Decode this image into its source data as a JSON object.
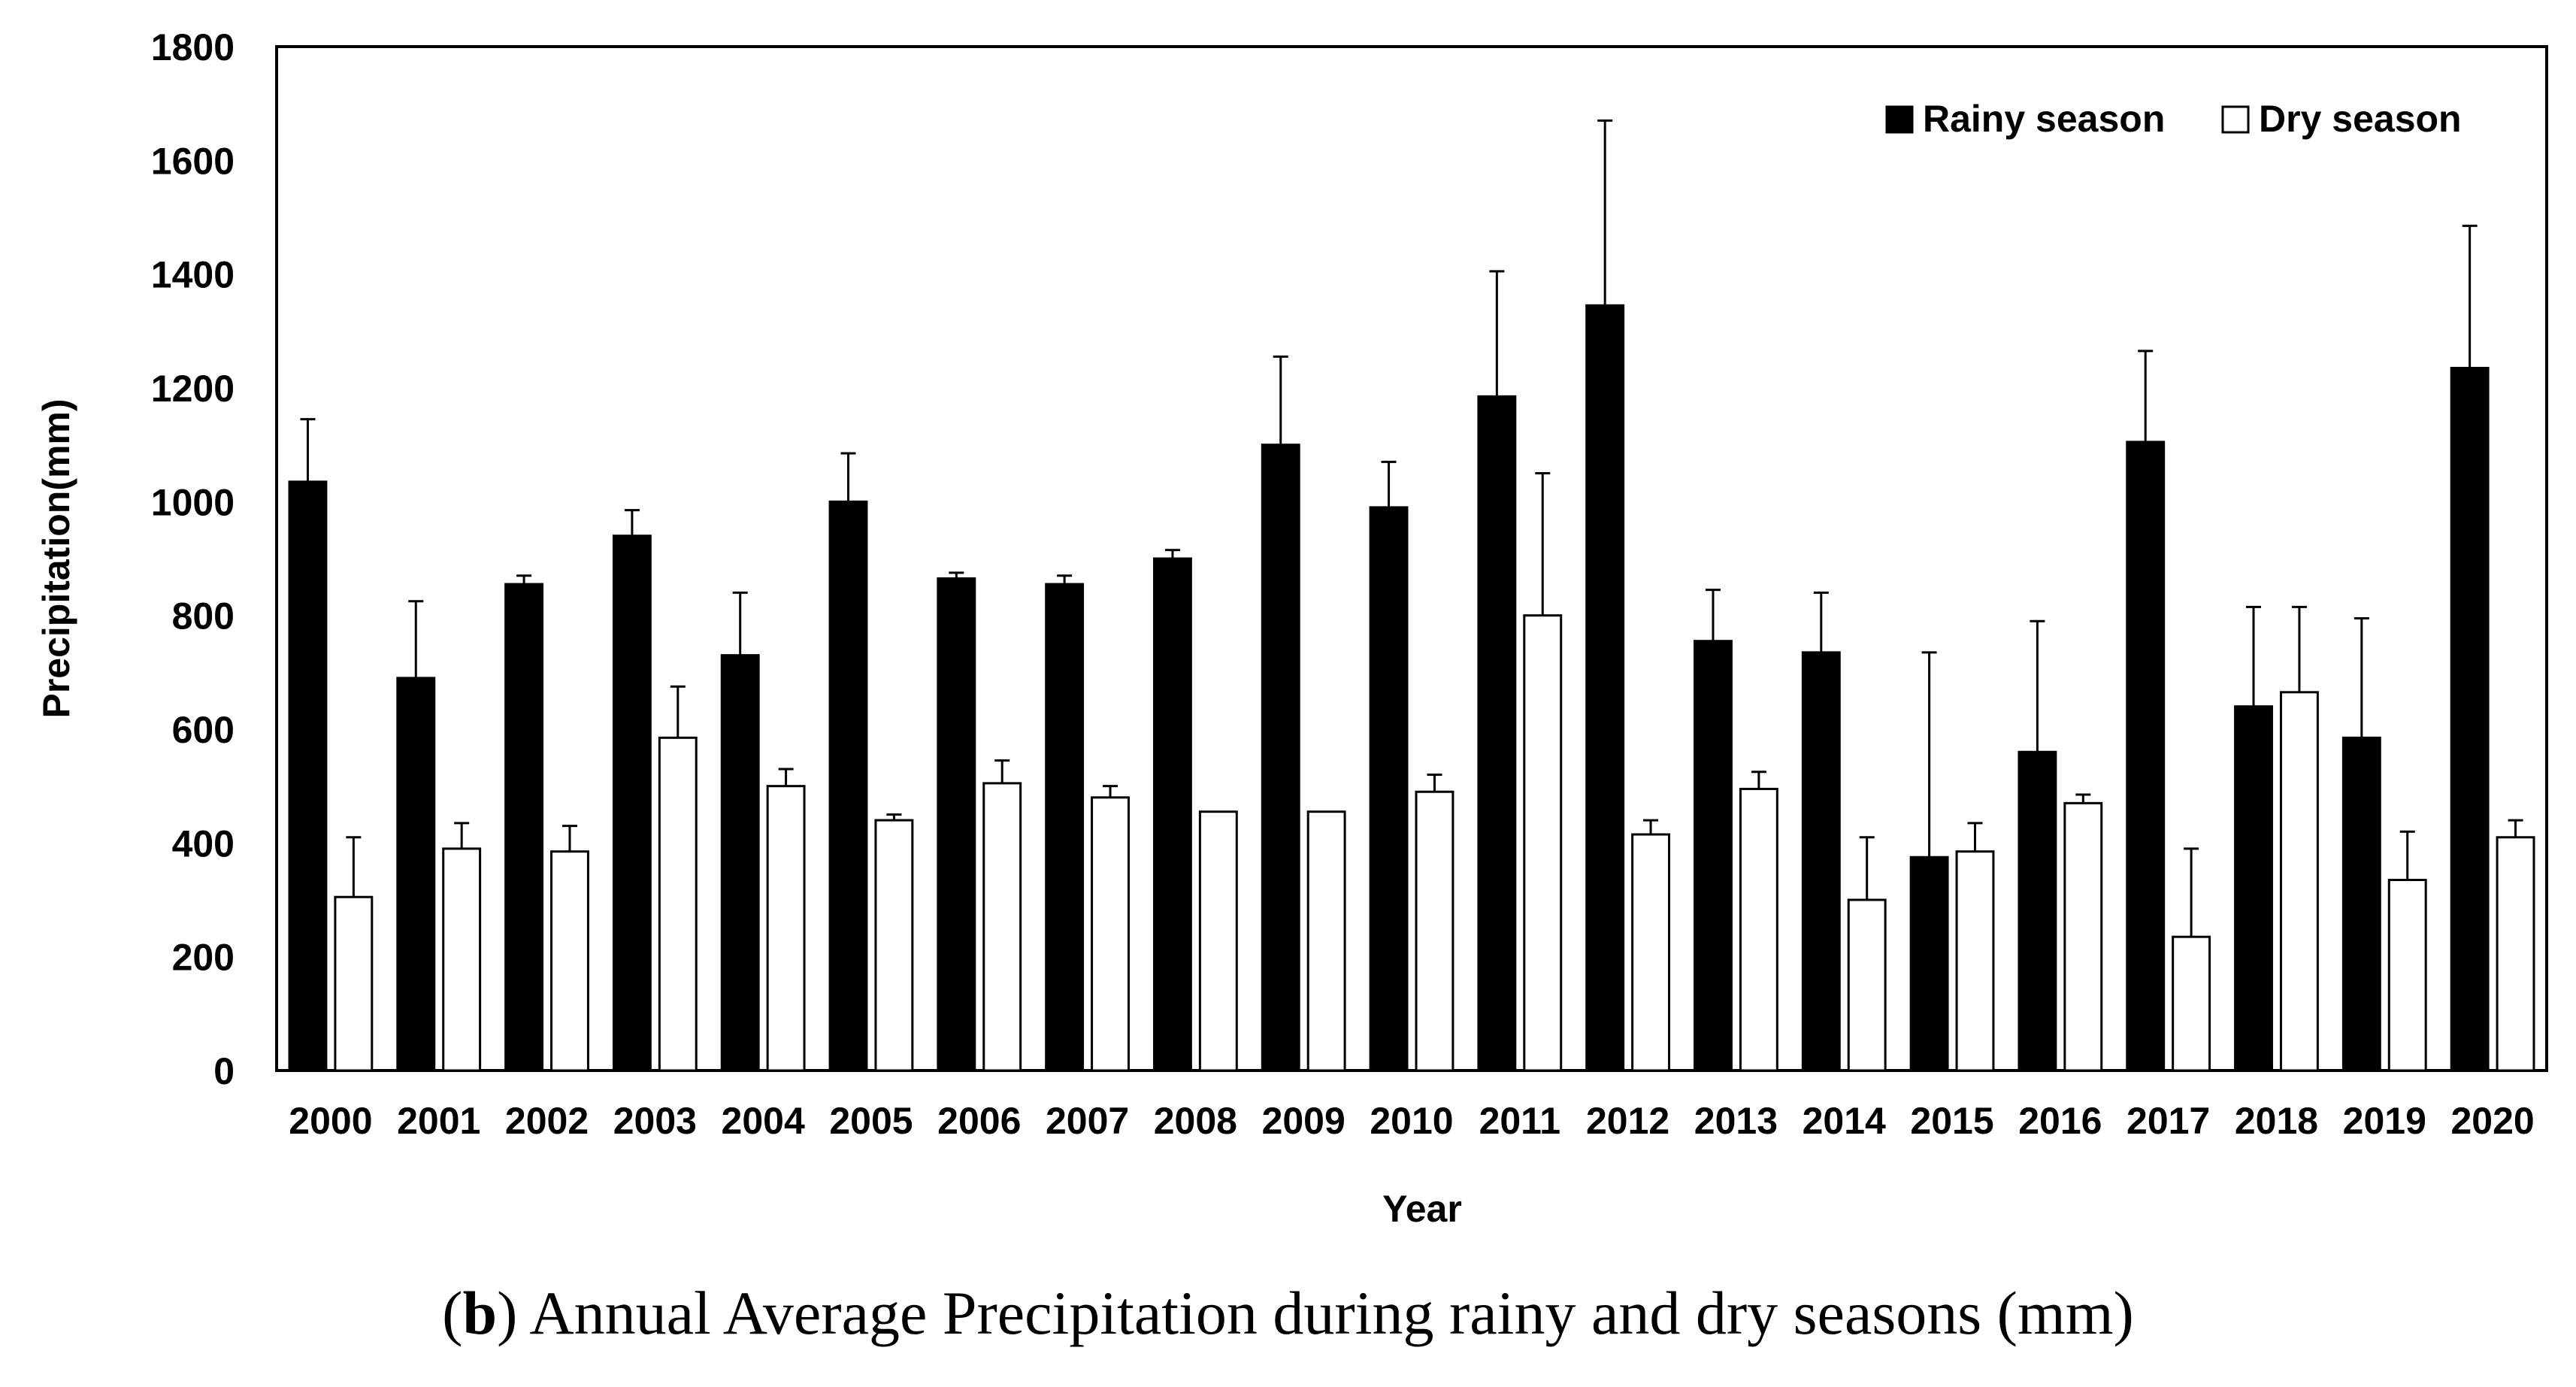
{
  "caption": {
    "letter": "b",
    "text": "Annual Average Precipitation during rainy and dry seasons (mm)"
  },
  "colors": {
    "rainy": "#000000",
    "dry": "#ffffff",
    "outline": "#000000"
  },
  "chart_data": {
    "type": "bar",
    "title": "",
    "xlabel": "Year",
    "ylabel": "Precipitation(mm)",
    "ylim": [
      0,
      1800
    ],
    "yticks": [
      0,
      200,
      400,
      600,
      800,
      1000,
      1200,
      1400,
      1600,
      1800
    ],
    "legend_position": "top-right",
    "categories": [
      "2000",
      "2001",
      "2002",
      "2003",
      "2004",
      "2005",
      "2006",
      "2007",
      "2008",
      "2009",
      "2010",
      "2011",
      "2012",
      "2013",
      "2014",
      "2015",
      "2016",
      "2017",
      "2018",
      "2019",
      "2020"
    ],
    "series": [
      {
        "name": "Rainy season",
        "values": [
          1035,
          690,
          855,
          940,
          730,
          1000,
          865,
          855,
          900,
          1100,
          990,
          1185,
          1345,
          755,
          735,
          375,
          560,
          1105,
          640,
          585,
          1235
        ],
        "errors": [
          110,
          135,
          15,
          45,
          110,
          85,
          10,
          15,
          15,
          155,
          80,
          220,
          325,
          90,
          105,
          360,
          230,
          160,
          175,
          210,
          250
        ]
      },
      {
        "name": "Dry season",
        "values": [
          305,
          390,
          385,
          585,
          500,
          440,
          505,
          480,
          455,
          455,
          490,
          800,
          415,
          495,
          300,
          385,
          470,
          235,
          665,
          335,
          410
        ],
        "errors": [
          105,
          45,
          45,
          90,
          30,
          10,
          40,
          20,
          0,
          0,
          30,
          250,
          25,
          30,
          110,
          50,
          15,
          155,
          150,
          85,
          30
        ]
      }
    ]
  }
}
